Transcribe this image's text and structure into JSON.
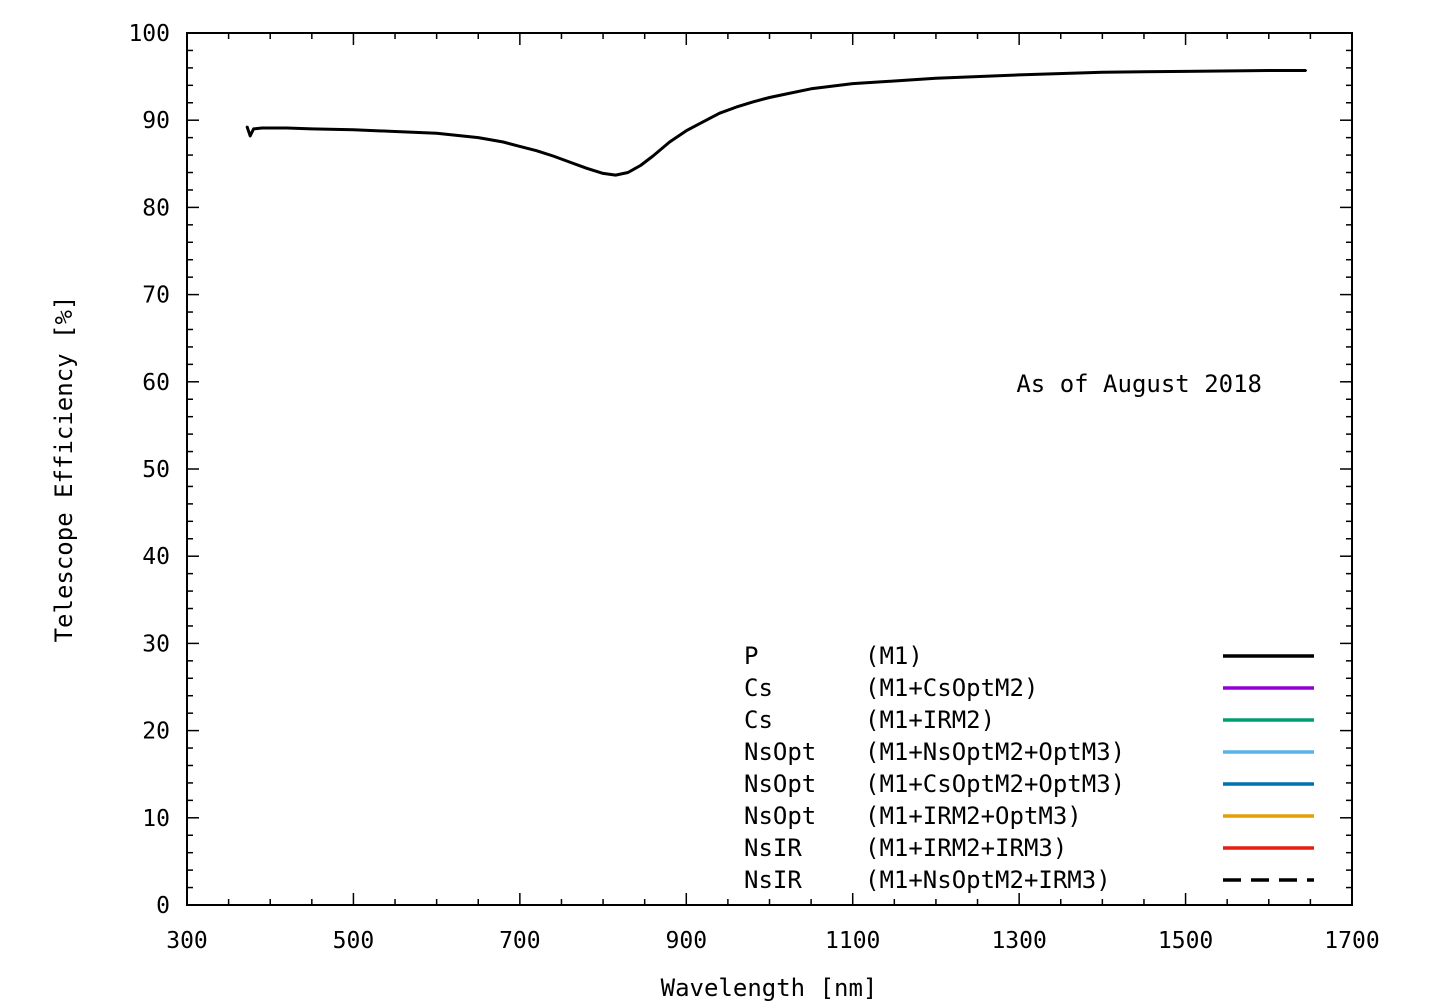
{
  "chart_data": {
    "type": "line",
    "xlabel": "Wavelength [nm]",
    "ylabel": "Telescope Efficiency [%]",
    "xlim": [
      300,
      1700
    ],
    "ylim": [
      0,
      100
    ],
    "x_ticks": [
      "300",
      "500",
      "700",
      "900",
      "1100",
      "1300",
      "1500",
      "1700"
    ],
    "y_ticks": [
      "0",
      "10",
      "20",
      "30",
      "40",
      "50",
      "60",
      "70",
      "80",
      "90",
      "100"
    ],
    "grid": false,
    "annotation": "As of August 2018",
    "legend_position": "bottom-right",
    "legend": [
      {
        "name": "P",
        "config": "(M1)",
        "color": "#000000",
        "dash": false
      },
      {
        "name": "Cs",
        "config": "(M1+CsOptM2)",
        "color": "#9400d3",
        "dash": false
      },
      {
        "name": "Cs",
        "config": "(M1+IRM2)",
        "color": "#009e73",
        "dash": false
      },
      {
        "name": "NsOpt",
        "config": "(M1+NsOptM2+OptM3)",
        "color": "#56b4e9",
        "dash": false
      },
      {
        "name": "NsOpt",
        "config": "(M1+CsOptM2+OptM3)",
        "color": "#0072b2",
        "dash": false
      },
      {
        "name": "NsOpt",
        "config": "(M1+IRM2+OptM3)",
        "color": "#e69f00",
        "dash": false
      },
      {
        "name": "NsIR",
        "config": "(M1+IRM2+IRM3)",
        "color": "#e51e10",
        "dash": false
      },
      {
        "name": "NsIR",
        "config": "(M1+NsOptM2+IRM3)",
        "color": "#000000",
        "dash": true
      }
    ],
    "series": [
      {
        "color": "#000000",
        "x": [
          372,
          376,
          380,
          390,
          400,
          420,
          450,
          500,
          550,
          600,
          650,
          680,
          700,
          720,
          740,
          760,
          780,
          800,
          815,
          830,
          845,
          860,
          880,
          900,
          920,
          940,
          960,
          980,
          1000,
          1020,
          1050,
          1100,
          1150,
          1200,
          1300,
          1400,
          1500,
          1600,
          1645
        ],
        "y": [
          89.3,
          88.2,
          89.0,
          89.1,
          89.1,
          89.1,
          89.0,
          88.9,
          88.7,
          88.5,
          88.0,
          87.5,
          87.0,
          86.5,
          85.9,
          85.2,
          84.5,
          83.9,
          83.7,
          84.0,
          84.8,
          85.9,
          87.5,
          88.8,
          89.8,
          90.8,
          91.5,
          92.1,
          92.6,
          93.0,
          93.6,
          94.2,
          94.5,
          94.8,
          95.2,
          95.5,
          95.6,
          95.7,
          95.7
        ]
      }
    ]
  }
}
